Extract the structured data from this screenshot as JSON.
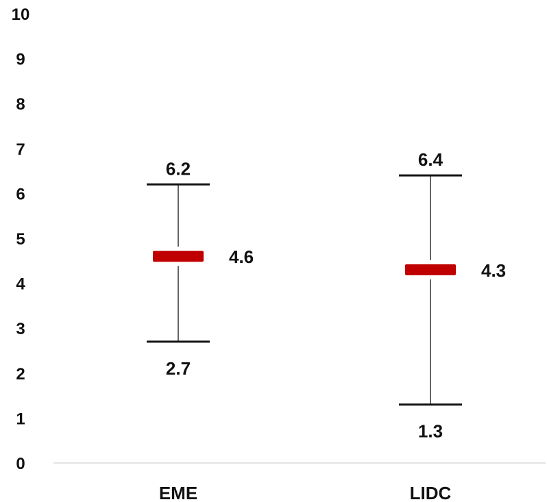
{
  "chart_data": {
    "type": "box",
    "title": "",
    "xlabel": "",
    "ylabel": "",
    "ylim": [
      0,
      10
    ],
    "yticks": [
      0,
      1,
      2,
      3,
      4,
      5,
      6,
      7,
      8,
      9,
      10
    ],
    "grid": false,
    "legend": "none",
    "categories": [
      "EME",
      "LIDC"
    ],
    "series": [
      {
        "category": "EME",
        "high": 6.2,
        "mid": 4.6,
        "low": 2.7,
        "high_label": "6.2",
        "mid_label": "4.6",
        "low_label": "2.7"
      },
      {
        "category": "LIDC",
        "high": 6.4,
        "mid": 4.3,
        "low": 1.3,
        "high_label": "6.4",
        "mid_label": "4.3",
        "low_label": "1.3"
      }
    ],
    "colors": {
      "marker": "#c00000",
      "whisker": "#111111",
      "axis": "#d9d9d9"
    }
  }
}
